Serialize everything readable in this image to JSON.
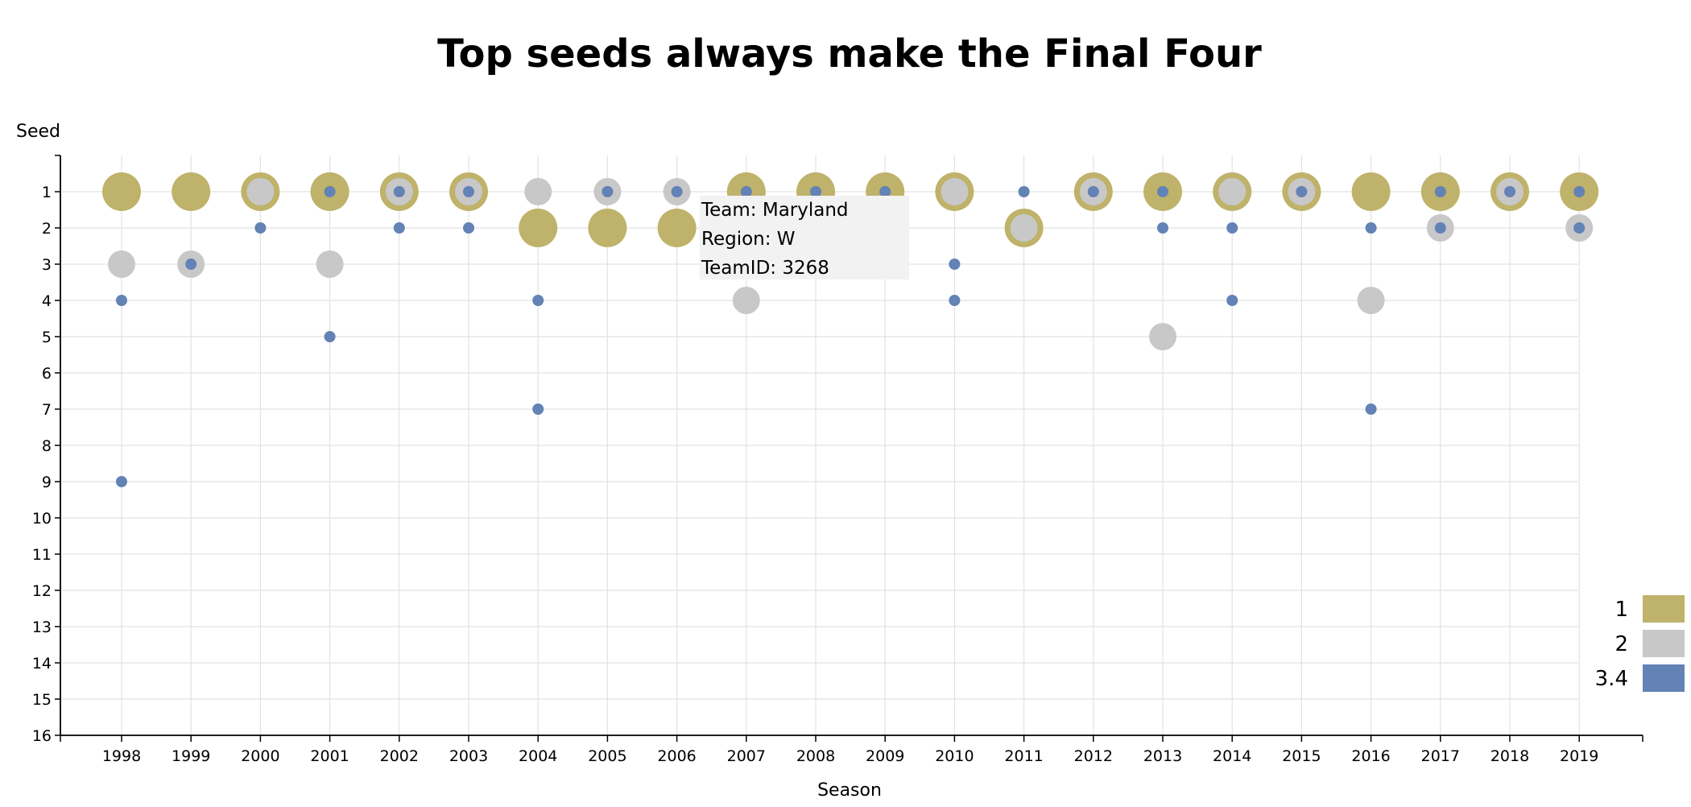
{
  "chart_data": {
    "type": "scatter",
    "title": "Top seeds always make the Final Four",
    "xlabel": "Season",
    "ylabel": "Seed",
    "x": [
      "1998",
      "1999",
      "2000",
      "2001",
      "2002",
      "2003",
      "2004",
      "2005",
      "2006",
      "2007",
      "2008",
      "2009",
      "2010",
      "2011",
      "2012",
      "2013",
      "2014",
      "2015",
      "2016",
      "2017",
      "2018",
      "2019"
    ],
    "y_range": [
      0,
      16
    ],
    "y_ticks": [
      1,
      2,
      3,
      4,
      5,
      6,
      7,
      8,
      9,
      10,
      11,
      12,
      13,
      14,
      15,
      16
    ],
    "grid": true,
    "legend_placement": "bottom-right",
    "legend": [
      {
        "label": "1",
        "color": "#bfb26a"
      },
      {
        "label": "2",
        "color": "#c8c8c8"
      },
      {
        "label": "3.4",
        "color": "#6382b5"
      }
    ],
    "series": [
      {
        "category": "1",
        "points": [
          [
            "1998",
            1
          ],
          [
            "1999",
            1
          ],
          [
            "2000",
            1
          ],
          [
            "2001",
            1
          ],
          [
            "2002",
            1
          ],
          [
            "2003",
            1
          ],
          [
            "2004",
            2
          ],
          [
            "2005",
            2
          ],
          [
            "2006",
            2
          ],
          [
            "2007",
            1
          ],
          [
            "2008",
            1
          ],
          [
            "2009",
            1
          ],
          [
            "2010",
            1
          ],
          [
            "2011",
            2
          ],
          [
            "2012",
            1
          ],
          [
            "2013",
            1
          ],
          [
            "2014",
            1
          ],
          [
            "2015",
            1
          ],
          [
            "2016",
            1
          ],
          [
            "2017",
            1
          ],
          [
            "2018",
            1
          ],
          [
            "2019",
            1
          ]
        ]
      },
      {
        "category": "2",
        "points": [
          [
            "1998",
            3
          ],
          [
            "1999",
            3
          ],
          [
            "2000",
            1
          ],
          [
            "2001",
            3
          ],
          [
            "2002",
            1
          ],
          [
            "2003",
            1
          ],
          [
            "2004",
            1
          ],
          [
            "2005",
            1
          ],
          [
            "2006",
            1
          ],
          [
            "2007",
            4
          ],
          [
            "2010",
            1
          ],
          [
            "2011",
            2
          ],
          [
            "2012",
            1
          ],
          [
            "2013",
            5
          ],
          [
            "2014",
            1
          ],
          [
            "2015",
            1
          ],
          [
            "2016",
            4
          ],
          [
            "2017",
            2
          ],
          [
            "2018",
            1
          ],
          [
            "2019",
            2
          ]
        ]
      },
      {
        "category": "3.4",
        "points": [
          [
            "1998",
            4
          ],
          [
            "1998",
            9
          ],
          [
            "1999",
            3
          ],
          [
            "2000",
            2
          ],
          [
            "2001",
            1
          ],
          [
            "2001",
            5
          ],
          [
            "2002",
            1
          ],
          [
            "2002",
            2
          ],
          [
            "2003",
            1
          ],
          [
            "2003",
            2
          ],
          [
            "2004",
            4
          ],
          [
            "2004",
            7
          ],
          [
            "2005",
            1
          ],
          [
            "2006",
            1
          ],
          [
            "2007",
            1
          ],
          [
            "2008",
            1
          ],
          [
            "2009",
            1
          ],
          [
            "2010",
            3
          ],
          [
            "2010",
            4
          ],
          [
            "2011",
            1
          ],
          [
            "2012",
            1
          ],
          [
            "2013",
            1
          ],
          [
            "2013",
            2
          ],
          [
            "2014",
            2
          ],
          [
            "2014",
            4
          ],
          [
            "2015",
            1
          ],
          [
            "2016",
            2
          ],
          [
            "2016",
            7
          ],
          [
            "2017",
            1
          ],
          [
            "2017",
            2
          ],
          [
            "2018",
            1
          ],
          [
            "2019",
            1
          ],
          [
            "2019",
            2
          ]
        ]
      }
    ],
    "tooltip": {
      "lines": [
        "Team: Maryland",
        "Region: W",
        "TeamID: 3268"
      ]
    }
  }
}
